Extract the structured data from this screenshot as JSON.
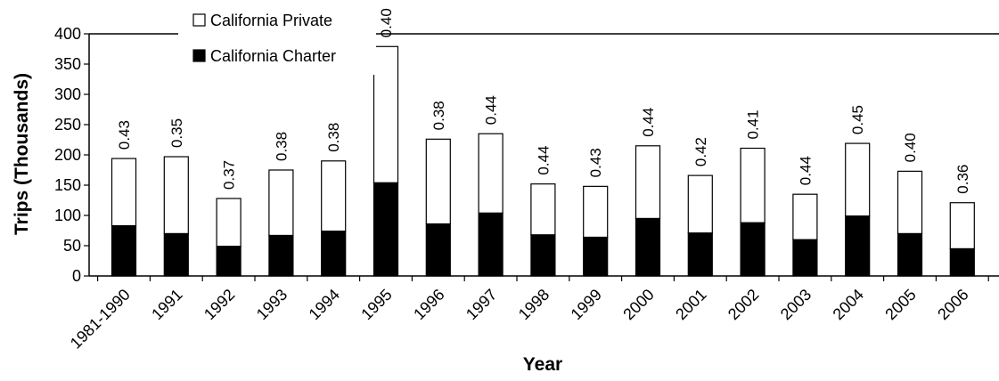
{
  "chart_data": {
    "type": "bar",
    "stacked": true,
    "xlabel": "Year",
    "ylabel": "Trips (Thousands)",
    "ylim": [
      0,
      400
    ],
    "yticks": [
      0,
      50,
      100,
      150,
      200,
      250,
      300,
      350,
      400
    ],
    "grid": false,
    "legend_position": "top-left",
    "categories": [
      "1981-1990",
      "1991",
      "1992",
      "1993",
      "1994",
      "1995",
      "1996",
      "1997",
      "1998",
      "1999",
      "2000",
      "2001",
      "2002",
      "2003",
      "2004",
      "2005",
      "2006"
    ],
    "series": [
      {
        "name": "California Charter",
        "color": "#000000",
        "values": [
          83,
          70,
          49,
          67,
          74,
          154,
          86,
          104,
          68,
          64,
          95,
          71,
          88,
          60,
          99,
          70,
          45
        ]
      },
      {
        "name": "California Private",
        "color": "#ffffff",
        "values": [
          111,
          127,
          79,
          108,
          116,
          225,
          140,
          131,
          84,
          84,
          120,
          95,
          123,
          75,
          120,
          103,
          76
        ]
      }
    ],
    "bar_annotations": [
      "0.43",
      "0.35",
      "0.37",
      "0.38",
      "0.38",
      "0.40",
      "0.38",
      "0.44",
      "0.44",
      "0.43",
      "0.44",
      "0.42",
      "0.41",
      "0.44",
      "0.45",
      "0.40",
      "0.36"
    ]
  }
}
